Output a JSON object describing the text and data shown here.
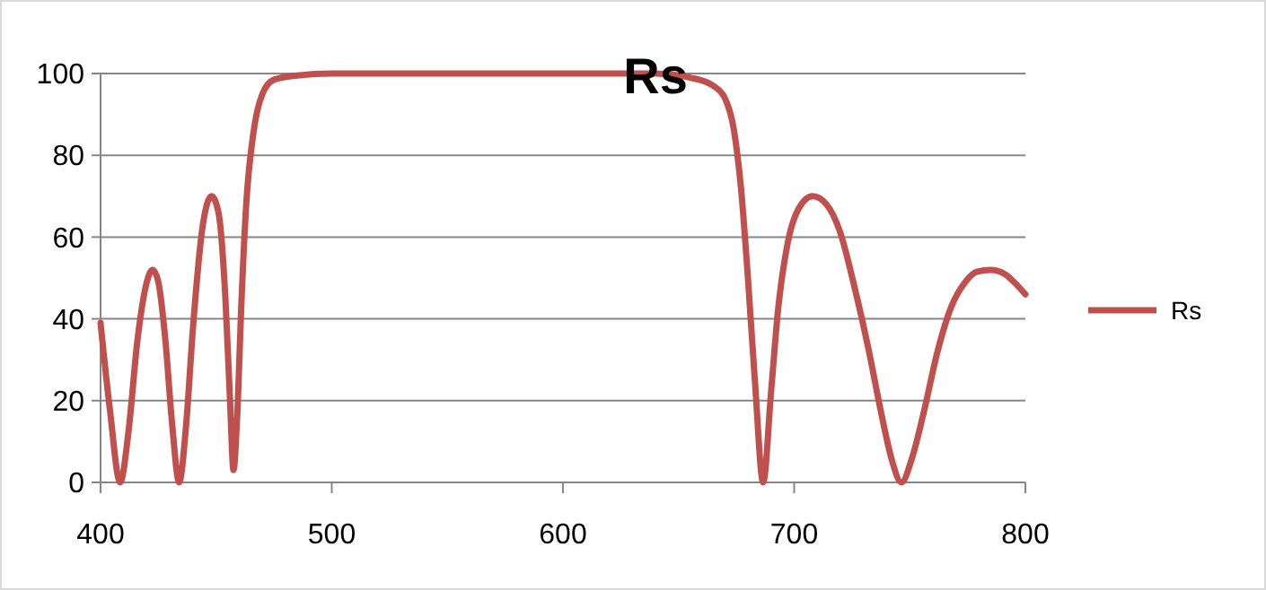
{
  "chart_data": {
    "type": "line",
    "title": "Rs",
    "x": [
      400,
      404,
      408.5,
      412,
      416,
      420,
      422.5,
      425,
      428,
      431,
      434,
      437,
      440,
      444,
      448,
      451,
      454,
      456,
      457.5,
      459,
      461,
      463,
      466,
      470,
      475,
      485,
      500,
      640,
      655,
      665,
      670,
      674,
      677,
      680,
      683,
      686.6,
      690,
      693,
      697,
      702,
      708,
      714,
      720,
      726,
      732,
      738,
      742,
      746.4,
      751,
      756,
      762,
      768,
      774,
      779,
      785,
      791,
      796,
      800
    ],
    "series": [
      {
        "name": "Rs",
        "color": "#c0504d",
        "values": [
          39,
          18,
          0,
          12,
          35,
          49,
          52,
          49,
          35,
          14,
          0,
          14,
          38,
          62,
          70,
          66,
          45,
          20,
          3,
          15,
          45,
          68,
          85,
          95,
          98.5,
          99.5,
          100,
          100,
          99,
          97,
          94,
          86,
          72,
          50,
          25,
          0,
          22,
          42,
          58,
          67,
          70,
          68,
          61,
          48,
          33,
          16,
          6,
          0,
          6,
          17,
          32,
          43,
          49,
          51.5,
          52,
          51,
          48.5,
          46
        ]
      }
    ],
    "xlim": [
      400,
      800
    ],
    "xticks": [
      400,
      500,
      600,
      700,
      800
    ],
    "ylim": [
      0,
      100
    ],
    "yticks": [
      0,
      20,
      40,
      60,
      80,
      100
    ],
    "grid": "y",
    "legend": "right",
    "marker": "none",
    "line_style": "solid"
  }
}
